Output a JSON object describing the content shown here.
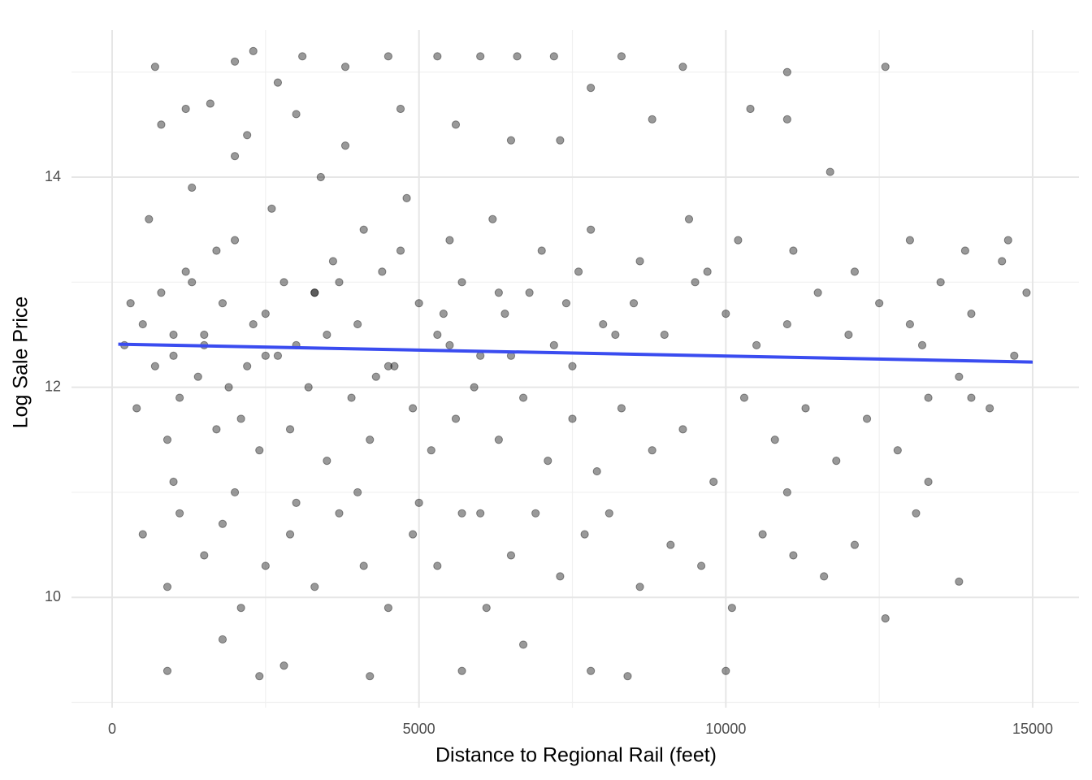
{
  "chart_data": {
    "type": "scatter",
    "x_label": "Distance to Regional Rail (feet)",
    "y_label": "Log Sale Price",
    "xlim": [
      -662,
      15755
    ],
    "ylim": [
      8.95,
      15.4
    ],
    "xticks": [
      0,
      5000,
      10000,
      15000
    ],
    "yticks": [
      10,
      12,
      14
    ],
    "minor_xticks": [
      2500,
      7500,
      12500
    ],
    "minor_yticks": [
      9,
      11,
      13,
      15
    ],
    "grid": true,
    "series": [
      {
        "kind": "points",
        "color": "#000000",
        "opacity": 0.4,
        "x": [
          500,
          800,
          1000,
          1200,
          1500,
          1800,
          2000,
          2200,
          2500,
          2800,
          3000,
          3300,
          3600,
          4000,
          4300,
          4700,
          5000,
          5300,
          5700,
          6000,
          6400,
          6800,
          7200,
          7600,
          8000,
          8500,
          9000,
          9500,
          10000,
          10500,
          11000,
          11500,
          12000,
          12500,
          13000,
          13500,
          14000,
          14500,
          14900,
          13200,
          400,
          700,
          900,
          1100,
          1400,
          1700,
          1900,
          2100,
          2400,
          2700,
          2900,
          3200,
          3500,
          3900,
          4200,
          4600,
          4900,
          5200,
          5600,
          5900,
          6300,
          6700,
          7100,
          7500,
          7900,
          8300,
          8800,
          9300,
          9800,
          10300,
          10800,
          11300,
          11800,
          12300,
          12800,
          13300,
          13800,
          14300,
          14700,
          11000,
          600,
          1300,
          2000,
          2600,
          3400,
          4100,
          4800,
          5500,
          6200,
          7000,
          7800,
          8600,
          9400,
          10200,
          11100,
          12100,
          13000,
          13900,
          14600,
          9700,
          700,
          1200,
          2000,
          2300,
          2700,
          3100,
          3800,
          4500,
          5300,
          6000,
          6600,
          7200,
          7800,
          8300,
          9300,
          10400,
          11000,
          12600,
          800,
          1600,
          2200,
          3000,
          3800,
          4700,
          5600,
          6500,
          7300,
          8800,
          11700,
          11000,
          500,
          900,
          1100,
          1500,
          1800,
          2100,
          2500,
          2900,
          3300,
          3700,
          4100,
          4500,
          4900,
          5300,
          5700,
          6100,
          6500,
          6900,
          7300,
          7700,
          8100,
          8600,
          9100,
          9600,
          10100,
          10600,
          11100,
          11600,
          12100,
          12600,
          900,
          1800,
          2400,
          2800,
          4200,
          5700,
          6700,
          7800,
          8400,
          10000,
          13100,
          13800,
          14000,
          13300,
          4000,
          3000,
          1000,
          2000,
          5000,
          6000,
          1000,
          1500,
          2500,
          3500,
          4500,
          5500,
          6500,
          7500,
          200,
          300,
          1300,
          2300,
          3300,
          4400,
          5400,
          6300,
          7400,
          8200,
          1700,
          3700
        ],
        "y": [
          12.6,
          12.9,
          12.3,
          13.1,
          12.5,
          12.8,
          13.4,
          12.2,
          12.7,
          13.0,
          12.4,
          12.9,
          13.2,
          12.6,
          12.1,
          13.3,
          12.8,
          12.5,
          13.0,
          12.3,
          12.7,
          12.9,
          12.4,
          13.1,
          12.6,
          12.8,
          12.5,
          13.0,
          12.7,
          12.4,
          12.6,
          12.9,
          12.5,
          12.8,
          12.6,
          13.0,
          12.7,
          13.2,
          12.9,
          12.4,
          11.8,
          12.2,
          11.5,
          11.9,
          12.1,
          11.6,
          12.0,
          11.7,
          11.4,
          12.3,
          11.6,
          12.0,
          11.3,
          11.9,
          11.5,
          12.2,
          11.8,
          11.4,
          11.7,
          12.0,
          11.5,
          11.9,
          11.3,
          11.7,
          11.2,
          11.8,
          11.4,
          11.6,
          11.1,
          11.9,
          11.5,
          11.8,
          11.3,
          11.7,
          11.4,
          11.9,
          12.1,
          11.8,
          12.3,
          11.0,
          13.6,
          13.9,
          14.2,
          13.7,
          14.0,
          13.5,
          13.8,
          13.4,
          13.6,
          13.3,
          13.5,
          13.2,
          13.6,
          13.4,
          13.3,
          13.1,
          13.4,
          13.3,
          13.4,
          13.1,
          15.05,
          14.65,
          15.1,
          15.2,
          14.9,
          15.15,
          15.05,
          15.15,
          15.15,
          15.15,
          15.15,
          15.15,
          14.85,
          15.15,
          15.05,
          14.65,
          15.0,
          15.05,
          14.5,
          14.7,
          14.4,
          14.6,
          14.3,
          14.65,
          14.5,
          14.35,
          14.35,
          14.55,
          14.05,
          14.55,
          10.6,
          10.1,
          10.8,
          10.4,
          10.7,
          9.9,
          10.3,
          10.6,
          10.1,
          10.8,
          10.3,
          9.9,
          10.6,
          10.3,
          10.8,
          9.9,
          10.4,
          10.8,
          10.2,
          10.6,
          10.8,
          10.1,
          10.5,
          10.3,
          9.9,
          10.6,
          10.4,
          10.2,
          10.5,
          9.8,
          9.3,
          9.6,
          9.25,
          9.35,
          9.25,
          9.3,
          9.55,
          9.3,
          9.25,
          9.3,
          10.8,
          10.15,
          11.9,
          11.1,
          11.0,
          10.9,
          11.1,
          11.0,
          10.9,
          10.8,
          12.5,
          12.4,
          12.3,
          12.5,
          12.2,
          12.4,
          12.3,
          12.2,
          12.4,
          12.8,
          13.0,
          12.6,
          12.9,
          13.1,
          12.7,
          12.9,
          12.8,
          12.5,
          13.3,
          13.0
        ]
      },
      {
        "kind": "line",
        "color": "#3a4cf0",
        "x": [
          100,
          15000
        ],
        "y": [
          12.41,
          12.24
        ]
      }
    ]
  }
}
